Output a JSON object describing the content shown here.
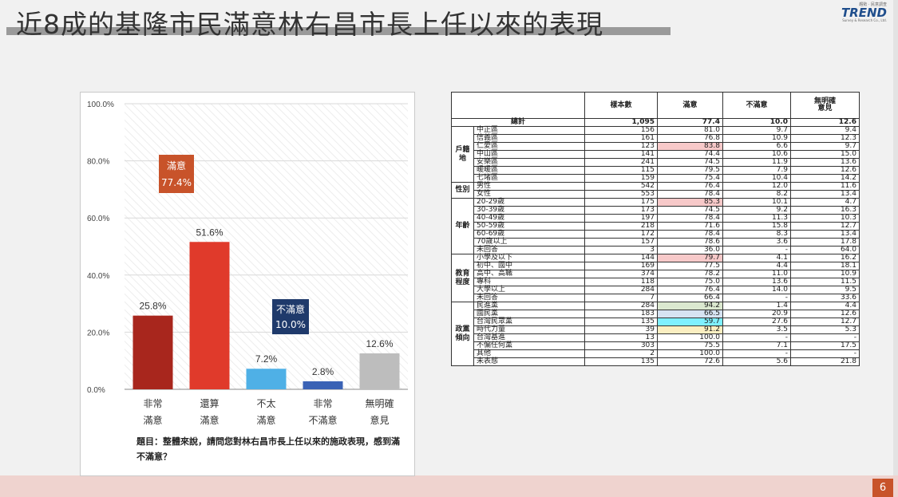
{
  "header": {
    "title": "近8成的基隆市民滿意林右昌市長上任以來的表現",
    "logo_top": "趨勢 · 民意調查",
    "logo_word": "TREND",
    "logo_sub": "Survey & Research Co., Ltd."
  },
  "footer": {
    "page_number": "6"
  },
  "colors": {
    "very_satisfied": "#a8261d",
    "somewhat_satisfied": "#e03a2b",
    "somewhat_dissatisfied": "#4fb0e6",
    "very_dissatisfied": "#3a62b5",
    "no_opinion": "#bdbdbd",
    "satisfied_box": "#c8532a",
    "dissatisfied_box": "#1f3a6b",
    "highlight_red": "#f7c9c9",
    "highlight_green": "#dbe8cf",
    "highlight_blue": "#d6e3f2",
    "highlight_cyan": "#7ff0ff",
    "highlight_yellow": "#fbefc2"
  },
  "chart_data": {
    "type": "bar",
    "categories": [
      "非常\n滿意",
      "還算\n滿意",
      "不太\n滿意",
      "非常\n不滿意",
      "無明確\n意見"
    ],
    "values": [
      25.8,
      51.6,
      7.2,
      2.8,
      12.6
    ],
    "value_labels": [
      "25.8%",
      "51.6%",
      "7.2%",
      "2.8%",
      "12.6%"
    ],
    "ylim": [
      0,
      100
    ],
    "yticks": [
      "0.0%",
      "20.0%",
      "40.0%",
      "60.0%",
      "80.0%",
      "100.0%"
    ],
    "ytick_values": [
      0,
      20,
      40,
      60,
      80,
      100
    ],
    "grid": true,
    "annotations": [
      {
        "label": "滿意",
        "value": "77.4%"
      },
      {
        "label": "不滿意",
        "value": "10.0%"
      }
    ],
    "question": "題目：整體來說，請問您對林右昌市長上任以來的施政表現，感到滿不滿意？"
  },
  "table": {
    "headers": [
      "",
      "樣本數",
      "滿意",
      "不滿意",
      "無明確\n意見"
    ],
    "total": {
      "label": "總計",
      "values": [
        "1,095",
        "77.4",
        "10.0",
        "12.6"
      ]
    },
    "groups": [
      {
        "name": "戶籍\n地",
        "rows": [
          {
            "label": "中正區",
            "values": [
              "156",
              "81.0",
              "9.7",
              "9.4"
            ]
          },
          {
            "label": "信義區",
            "values": [
              "161",
              "76.8",
              "10.9",
              "12.3"
            ]
          },
          {
            "label": "仁愛區",
            "values": [
              "123",
              "83.8",
              "6.6",
              "9.7"
            ],
            "hl": "red"
          },
          {
            "label": "中山區",
            "values": [
              "141",
              "74.4",
              "10.6",
              "15.0"
            ]
          },
          {
            "label": "安樂區",
            "values": [
              "241",
              "74.5",
              "11.9",
              "13.6"
            ]
          },
          {
            "label": "暖暖區",
            "values": [
              "115",
              "79.5",
              "7.9",
              "12.6"
            ]
          },
          {
            "label": "七堵區",
            "values": [
              "159",
              "75.4",
              "10.4",
              "14.2"
            ]
          }
        ]
      },
      {
        "name": "性別",
        "rows": [
          {
            "label": "男性",
            "values": [
              "542",
              "76.4",
              "12.0",
              "11.6"
            ]
          },
          {
            "label": "女性",
            "values": [
              "553",
              "78.4",
              "8.2",
              "13.4"
            ]
          }
        ]
      },
      {
        "name": "年齡",
        "rows": [
          {
            "label": "20-29歲",
            "values": [
              "175",
              "85.3",
              "10.1",
              "4.7"
            ],
            "hl": "red"
          },
          {
            "label": "30-39歲",
            "values": [
              "173",
              "74.5",
              "9.2",
              "16.3"
            ]
          },
          {
            "label": "40-49歲",
            "values": [
              "197",
              "78.4",
              "11.3",
              "10.3"
            ]
          },
          {
            "label": "50-59歲",
            "values": [
              "218",
              "71.6",
              "15.8",
              "12.7"
            ]
          },
          {
            "label": "60-69歲",
            "values": [
              "172",
              "78.4",
              "8.3",
              "13.4"
            ]
          },
          {
            "label": "70歲以上",
            "values": [
              "157",
              "78.6",
              "3.6",
              "17.8"
            ]
          },
          {
            "label": "未回答",
            "values": [
              "3",
              "36.0",
              "-",
              "64.0"
            ]
          }
        ]
      },
      {
        "name": "教育\n程度",
        "rows": [
          {
            "label": "小學及以下",
            "values": [
              "144",
              "79.7",
              "4.1",
              "16.2"
            ],
            "hl": "red"
          },
          {
            "label": "初中、國中",
            "values": [
              "169",
              "77.5",
              "4.4",
              "18.1"
            ]
          },
          {
            "label": "高中、高職",
            "values": [
              "374",
              "78.2",
              "11.0",
              "10.9"
            ]
          },
          {
            "label": "專科",
            "values": [
              "118",
              "75.0",
              "13.6",
              "11.5"
            ]
          },
          {
            "label": "大學以上",
            "values": [
              "284",
              "76.4",
              "14.0",
              "9.5"
            ]
          },
          {
            "label": "未回答",
            "values": [
              "7",
              "66.4",
              "-",
              "33.6"
            ]
          }
        ]
      },
      {
        "name": "政黨\n傾向",
        "rows": [
          {
            "label": "民進黨",
            "values": [
              "284",
              "94.2",
              "1.4",
              "4.4"
            ],
            "hl": "green"
          },
          {
            "label": "國民黨",
            "values": [
              "183",
              "66.5",
              "20.9",
              "12.6"
            ],
            "hl": "blue"
          },
          {
            "label": "台灣民眾黨",
            "values": [
              "135",
              "59.7",
              "27.6",
              "12.7"
            ],
            "hl": "cyan"
          },
          {
            "label": "時代力量",
            "values": [
              "39",
              "91.2",
              "3.5",
              "5.3"
            ],
            "hl": "yellow"
          },
          {
            "label": "台灣基進",
            "values": [
              "13",
              "100.0",
              "-",
              "-"
            ]
          },
          {
            "label": "不偏任何黨",
            "values": [
              "303",
              "75.5",
              "7.1",
              "17.5"
            ]
          },
          {
            "label": "其他",
            "values": [
              "2",
              "100.0",
              "-",
              "-"
            ]
          },
          {
            "label": "未表態",
            "values": [
              "135",
              "72.6",
              "5.6",
              "21.8"
            ]
          }
        ]
      }
    ]
  }
}
